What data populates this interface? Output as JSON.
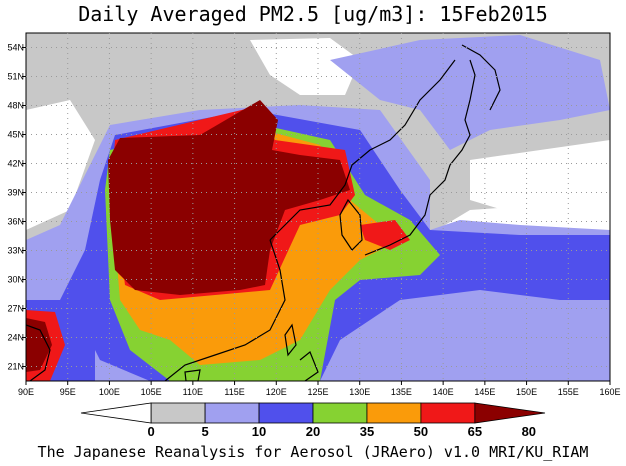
{
  "title": "Daily Averaged PM2.5 [ug/m3]: 15Feb2015",
  "footer": "The Japanese Reanalysis for Aerosol (JRAero) v1.0 MRI/KU_RIAM",
  "map": {
    "lon_labels": [
      "90E",
      "95E",
      "100E",
      "105E",
      "110E",
      "115E",
      "120E",
      "125E",
      "130E",
      "135E",
      "140E",
      "145E",
      "150E",
      "155E",
      "160E"
    ],
    "lat_labels": [
      "54N",
      "51N",
      "48N",
      "45N",
      "42N",
      "39N",
      "36N",
      "33N",
      "30N",
      "27N",
      "24N",
      "21N"
    ]
  },
  "legend": {
    "tick_labels": [
      "0",
      "5",
      "10",
      "20",
      "35",
      "50",
      "65",
      "80"
    ],
    "colors": [
      "#ffffff",
      "#c8c8c8",
      "#a0a0f0",
      "#5050ec",
      "#86d232",
      "#fa9b0a",
      "#f01818",
      "#8b0000"
    ]
  }
}
